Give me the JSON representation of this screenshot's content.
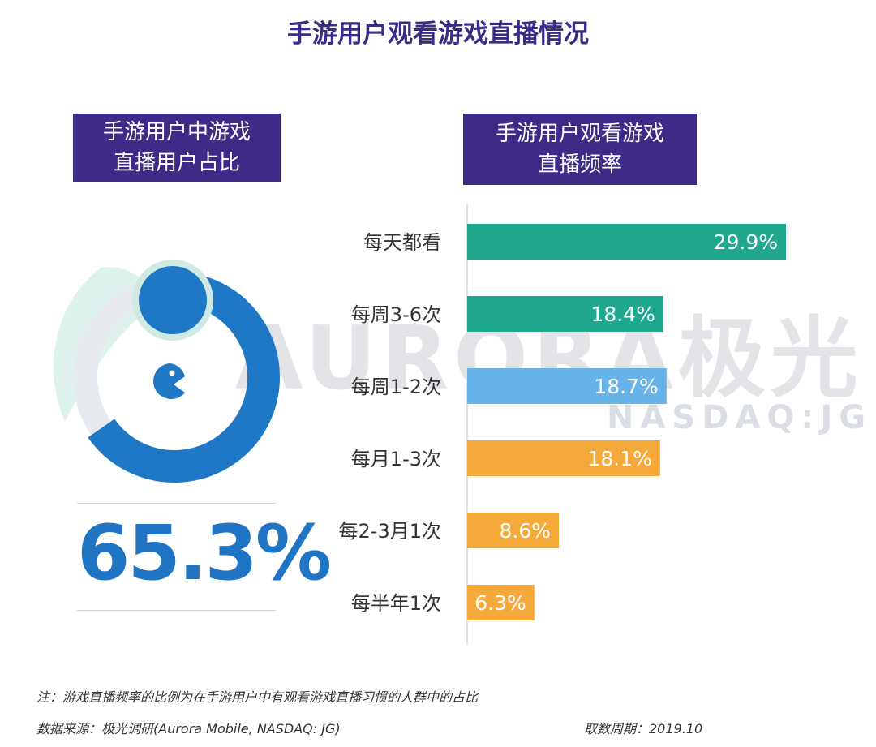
{
  "title": "手游用户观看游戏直播情况",
  "left_panel": {
    "header_lines": [
      "手游用户中游戏",
      "直播用户占比"
    ],
    "value": 65.3,
    "value_label": "65.3%",
    "color": "#1f78c6"
  },
  "right_panel": {
    "header_lines": [
      "手游用户观看游戏",
      "直播频率"
    ]
  },
  "watermark": {
    "brand": "AURORA极光",
    "sub": "NASDAQ:JG"
  },
  "chart_data": [
    {
      "type": "pie",
      "values": [
        65.3,
        34.7
      ],
      "labels": [
        "",
        ""
      ],
      "title": "手游用户中游戏直播用户占比",
      "annotations": [
        "65.3%"
      ]
    },
    {
      "type": "bar",
      "orientation": "horizontal",
      "title": "手游用户观看游戏直播频率",
      "categories": [
        "每天都看",
        "每周3-6次",
        "每周1-2次",
        "每月1-3次",
        "每2-3月1次",
        "每半年1次"
      ],
      "values": [
        29.9,
        18.4,
        18.7,
        18.1,
        8.6,
        6.3
      ],
      "data_labels": [
        "29.9%",
        "18.4%",
        "18.7%",
        "18.1%",
        "8.6%",
        "6.3%"
      ],
      "colors": [
        "#1fa88e",
        "#1fa88e",
        "#66b4ea",
        "#f5a93b",
        "#f5a93b",
        "#f5a93b"
      ],
      "xlim": [
        0,
        30
      ],
      "xlabel": "",
      "ylabel": "",
      "grid": false
    }
  ],
  "footnotes": {
    "note": "注：游戏直播频率的比例为在手游用户中有观看游戏直播习惯的人群中的占比",
    "source": "数据来源：极光调研(Aurora Mobile, NASDAQ: JG)",
    "period": "取数周期：2019.10"
  }
}
